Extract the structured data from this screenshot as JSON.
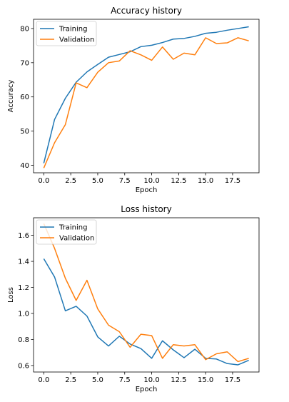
{
  "chart_data": [
    {
      "type": "line",
      "title": "Accuracy history",
      "xlabel": "Epoch",
      "ylabel": "Accuracy",
      "xlim": [
        -0.95,
        19.95
      ],
      "ylim": [
        37.8,
        82.7
      ],
      "xticks": [
        0,
        2.5,
        5,
        7.5,
        10,
        12.5,
        15,
        17.5
      ],
      "xtick_labels": [
        "0.0",
        "2.5",
        "5.0",
        "7.5",
        "10.0",
        "12.5",
        "15.0",
        "17.5"
      ],
      "yticks": [
        40,
        50,
        60,
        70,
        80
      ],
      "ytick_labels": [
        "40",
        "50",
        "60",
        "70",
        "80"
      ],
      "legend": "top-left",
      "x": [
        0,
        1,
        2,
        3,
        4,
        5,
        6,
        7,
        8,
        9,
        10,
        11,
        12,
        13,
        14,
        15,
        16,
        17,
        18,
        19
      ],
      "series": [
        {
          "name": "Training",
          "color": "#1f77b4",
          "values": [
            40.6,
            53.4,
            59.6,
            64.3,
            67.3,
            69.5,
            71.6,
            72.4,
            73.2,
            74.7,
            75.1,
            75.9,
            76.9,
            77.1,
            77.7,
            78.6,
            78.9,
            79.5,
            80.0,
            80.5
          ]
        },
        {
          "name": "Validation",
          "color": "#ff7f0e",
          "values": [
            39.2,
            46.6,
            51.9,
            64.1,
            62.7,
            67.2,
            70.0,
            70.5,
            73.5,
            72.3,
            70.7,
            74.6,
            71.0,
            72.8,
            72.3,
            77.3,
            75.6,
            75.8,
            77.3,
            76.4
          ]
        }
      ]
    },
    {
      "type": "line",
      "title": "Loss history",
      "xlabel": "Epoch",
      "ylabel": "Loss",
      "xlim": [
        -0.95,
        19.95
      ],
      "ylim": [
        0.55,
        1.735
      ],
      "xticks": [
        0,
        2.5,
        5,
        7.5,
        10,
        12.5,
        15,
        17.5
      ],
      "xtick_labels": [
        "0.0",
        "2.5",
        "5.0",
        "7.5",
        "10.0",
        "12.5",
        "15.0",
        "17.5"
      ],
      "yticks": [
        0.6,
        0.8,
        1.0,
        1.2,
        1.4,
        1.6
      ],
      "ytick_labels": [
        "0.6",
        "0.8",
        "1.0",
        "1.2",
        "1.4",
        "1.6"
      ],
      "legend": "top-left",
      "x": [
        0,
        1,
        2,
        3,
        4,
        5,
        6,
        7,
        8,
        9,
        10,
        11,
        12,
        13,
        14,
        15,
        16,
        17,
        18,
        19
      ],
      "series": [
        {
          "name": "Training",
          "color": "#1f77b4",
          "values": [
            1.42,
            1.28,
            1.02,
            1.055,
            0.98,
            0.82,
            0.75,
            0.825,
            0.765,
            0.73,
            0.655,
            0.79,
            0.72,
            0.66,
            0.725,
            0.655,
            0.65,
            0.615,
            0.605,
            0.64
          ]
        },
        {
          "name": "Validation",
          "color": "#ff7f0e",
          "values": [
            1.69,
            1.5,
            1.27,
            1.1,
            1.255,
            1.035,
            0.91,
            0.86,
            0.74,
            0.84,
            0.83,
            0.655,
            0.76,
            0.75,
            0.76,
            0.645,
            0.69,
            0.705,
            0.63,
            0.655
          ]
        }
      ]
    }
  ]
}
